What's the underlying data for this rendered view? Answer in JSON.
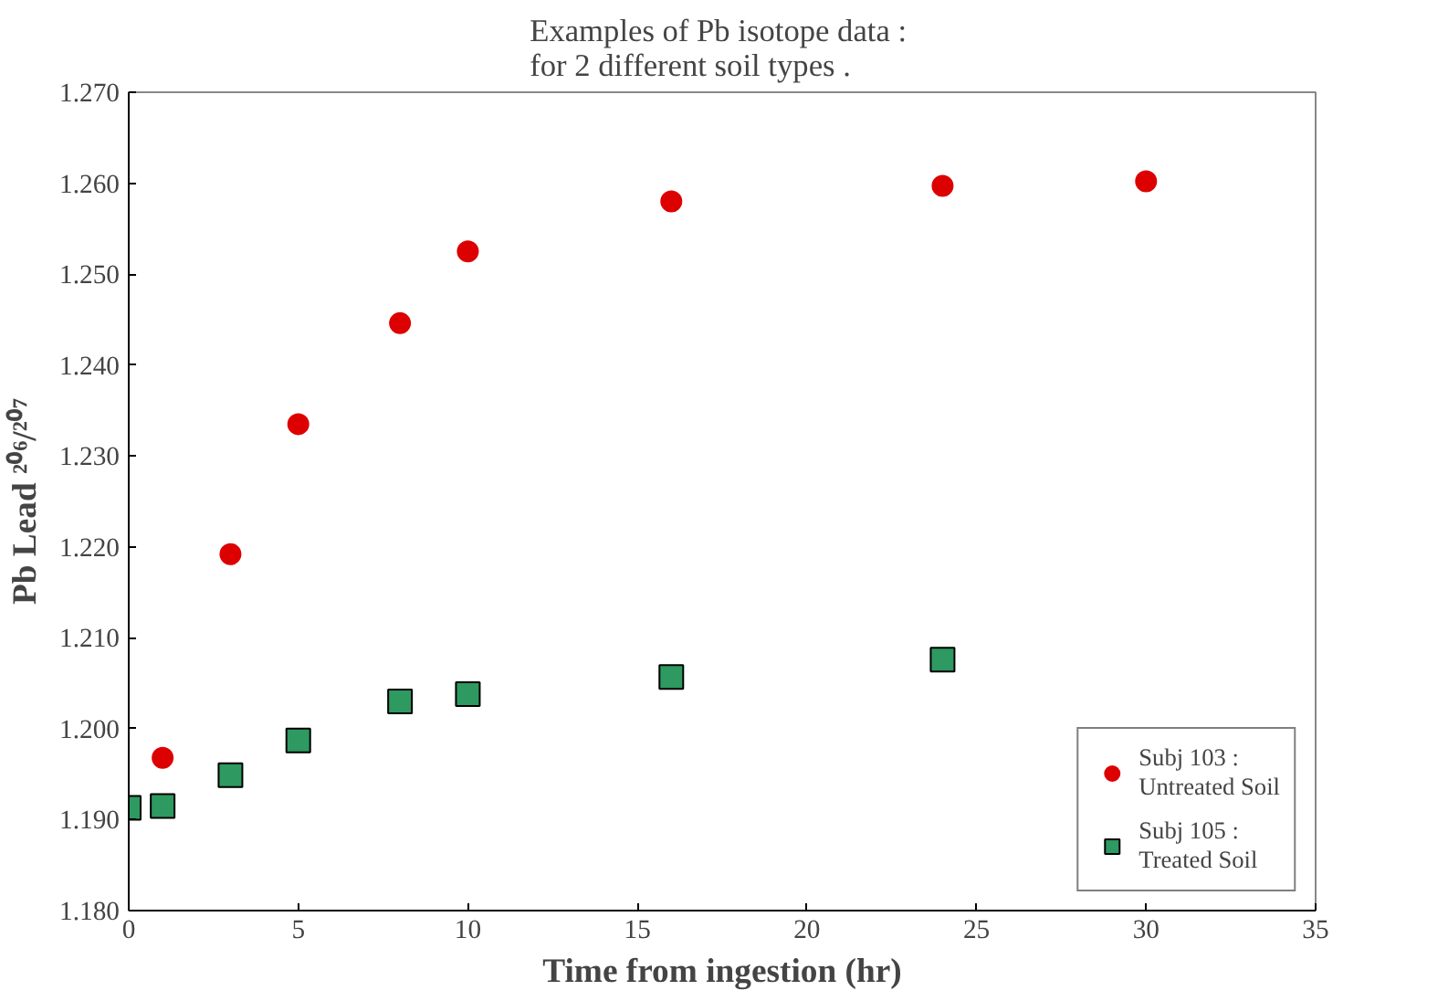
{
  "chart_data": {
    "type": "scatter",
    "title": "Examples of Pb isotope data  :\nfor 2 different soil types  .",
    "xlabel": "Time from ingestion (hr)",
    "ylabel": "Pb Lead ²⁰⁶/²⁰⁷",
    "series": [
      {
        "name": "Subj 103 :\nUntreated Soil",
        "color": "#dd0000",
        "marker": "circle",
        "x": [
          1,
          3,
          5,
          8,
          10,
          16,
          24,
          30
        ],
        "values": [
          1.1968,
          1.2192,
          1.2335,
          1.2446,
          1.2525,
          1.258,
          1.2597,
          1.2602
        ]
      },
      {
        "name": "Subj 105 :\nTreated Soil",
        "color": "#2e9960",
        "marker": "square",
        "x": [
          0,
          1,
          3,
          5,
          8,
          10,
          16,
          24
        ],
        "values": [
          1.1913,
          1.1915,
          1.1949,
          1.1987,
          1.203,
          1.2038,
          1.2057,
          1.2076
        ]
      }
    ],
    "xlim": [
      0,
      35
    ],
    "xticks": [
      0,
      5,
      10,
      15,
      20,
      25,
      30,
      35
    ],
    "ylim": [
      1.18,
      1.27
    ],
    "yticks": [
      {
        "value": 1.18,
        "label": "1.180"
      },
      {
        "value": 1.19,
        "label": "1.190"
      },
      {
        "value": 1.2,
        "label": "1.200"
      },
      {
        "value": 1.21,
        "label": "1.210"
      },
      {
        "value": 1.22,
        "label": "1.220"
      },
      {
        "value": 1.23,
        "label": "1.230"
      },
      {
        "value": 1.24,
        "label": "1.240"
      },
      {
        "value": 1.25,
        "label": "1.250"
      },
      {
        "value": 1.26,
        "label": "1.260"
      },
      {
        "value": 1.27,
        "label": "1.270"
      }
    ],
    "grid": false,
    "legend": "bottom right"
  }
}
